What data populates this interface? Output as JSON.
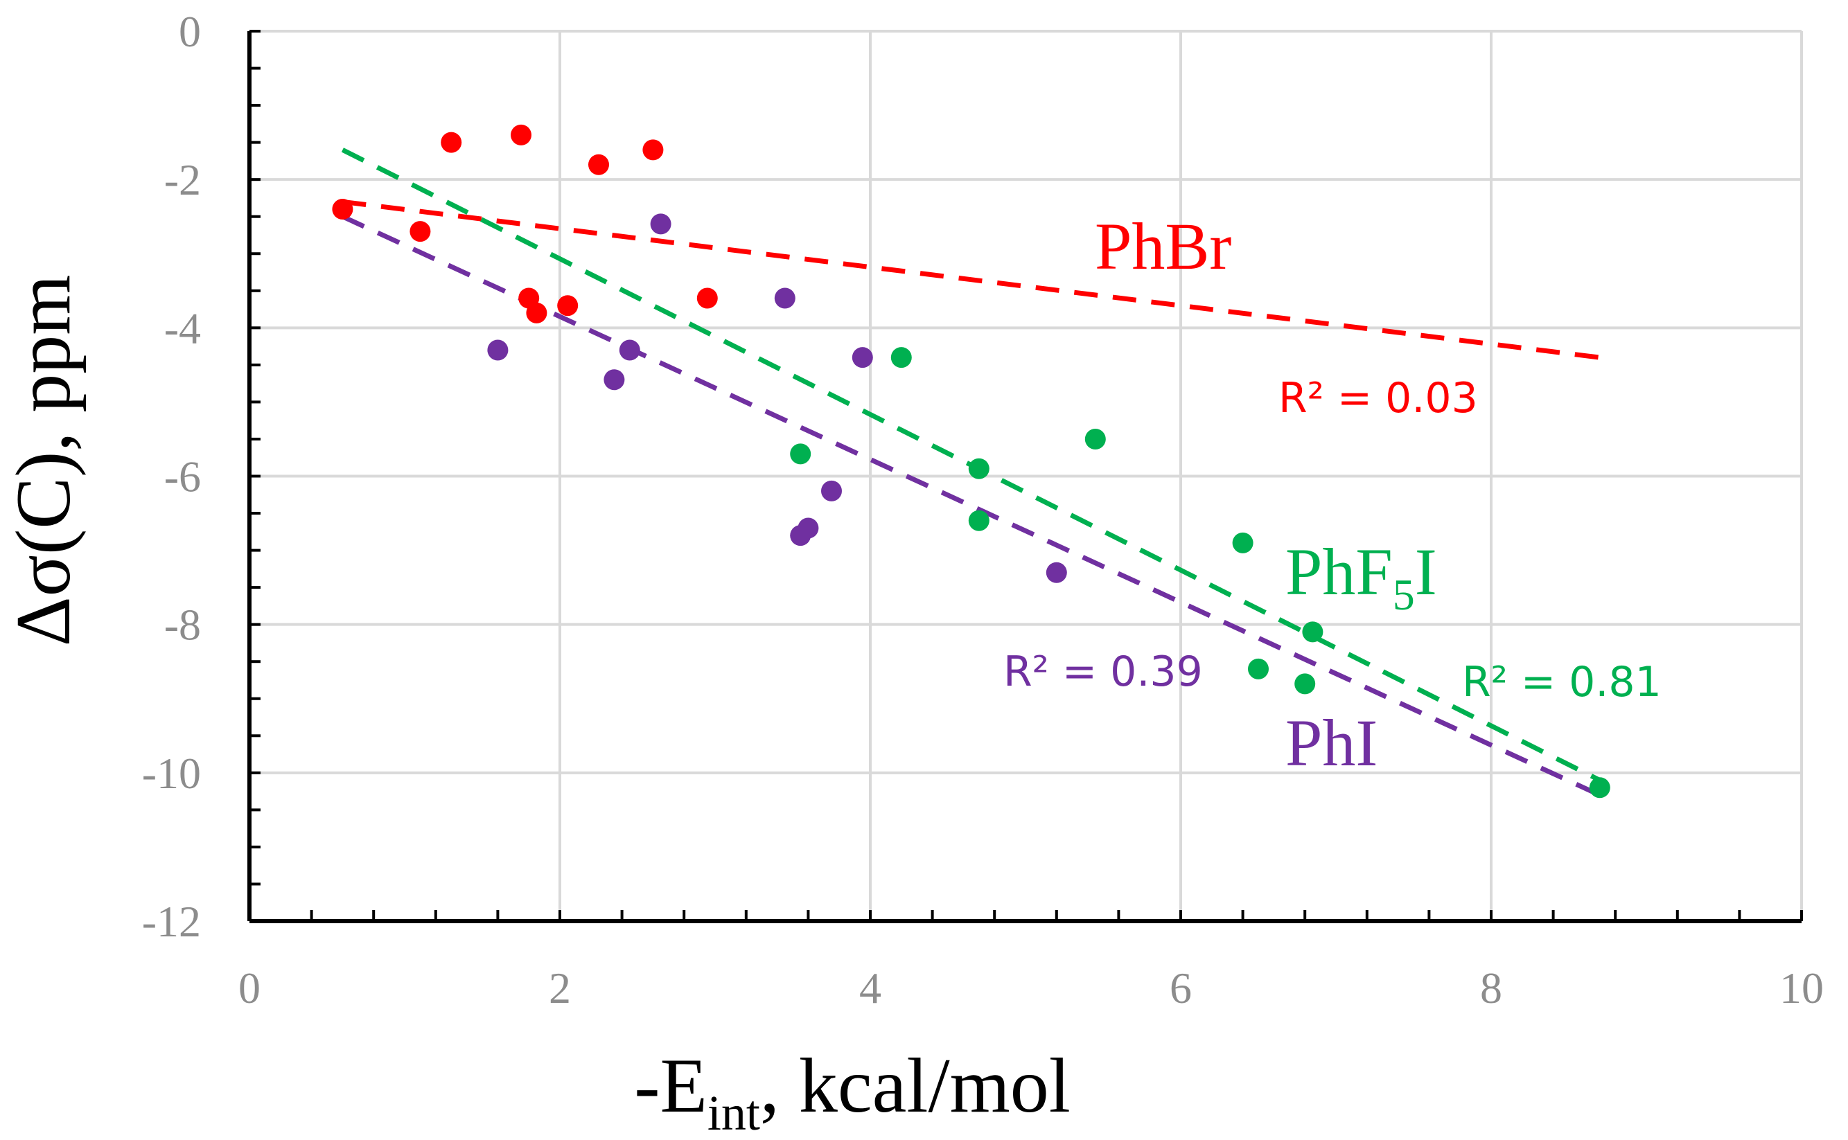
{
  "chart_data": {
    "type": "scatter",
    "xlabel": {
      "prefix": "-E",
      "sub": "int",
      "suffix": ", kcal/mol"
    },
    "ylabel": "Δσ(C), ppm",
    "xlim": [
      0,
      10
    ],
    "ylim": [
      -12,
      0
    ],
    "x_ticks": [
      "0",
      "2",
      "4",
      "6",
      "8",
      "10"
    ],
    "y_ticks": [
      "0",
      "-2",
      "-4",
      "-6",
      "-8",
      "-10",
      "-12"
    ],
    "grid": true,
    "series": [
      {
        "key": "phbr",
        "name": "PhBr",
        "color": "#ff0000",
        "points": [
          [
            0.6,
            -2.4
          ],
          [
            1.1,
            -2.7
          ],
          [
            1.3,
            -1.5
          ],
          [
            1.75,
            -1.4
          ],
          [
            1.8,
            -3.6
          ],
          [
            1.85,
            -3.8
          ],
          [
            2.05,
            -3.7
          ],
          [
            2.25,
            -1.8
          ],
          [
            2.6,
            -1.6
          ],
          [
            2.95,
            -3.6
          ]
        ],
        "trend": [
          [
            0.6,
            -2.3
          ],
          [
            8.7,
            -4.4
          ]
        ],
        "r2": "R² = 0.03"
      },
      {
        "key": "phf5i",
        "name": "PhF5I",
        "name_parts": {
          "base": "PhF",
          "sub": "5",
          "suffix": "I"
        },
        "color": "#00b050",
        "points": [
          [
            3.55,
            -5.7
          ],
          [
            4.2,
            -4.4
          ],
          [
            4.7,
            -5.9
          ],
          [
            4.7,
            -6.6
          ],
          [
            5.45,
            -5.5
          ],
          [
            6.4,
            -6.9
          ],
          [
            6.5,
            -8.6
          ],
          [
            6.8,
            -8.8
          ],
          [
            6.85,
            -8.1
          ],
          [
            8.7,
            -10.2
          ]
        ],
        "trend": [
          [
            0.6,
            -1.6
          ],
          [
            8.7,
            -10.1
          ]
        ],
        "r2": "R² = 0.81"
      },
      {
        "key": "phi",
        "name": "PhI",
        "color": "#7030a0",
        "points": [
          [
            1.6,
            -4.3
          ],
          [
            2.35,
            -4.7
          ],
          [
            2.45,
            -4.3
          ],
          [
            2.65,
            -2.6
          ],
          [
            3.45,
            -3.6
          ],
          [
            3.55,
            -6.8
          ],
          [
            3.6,
            -6.7
          ],
          [
            3.75,
            -6.2
          ],
          [
            3.95,
            -4.4
          ],
          [
            5.2,
            -7.3
          ]
        ],
        "trend": [
          [
            0.6,
            -2.5
          ],
          [
            8.7,
            -10.3
          ]
        ],
        "r2": "R² = 0.39"
      }
    ]
  }
}
